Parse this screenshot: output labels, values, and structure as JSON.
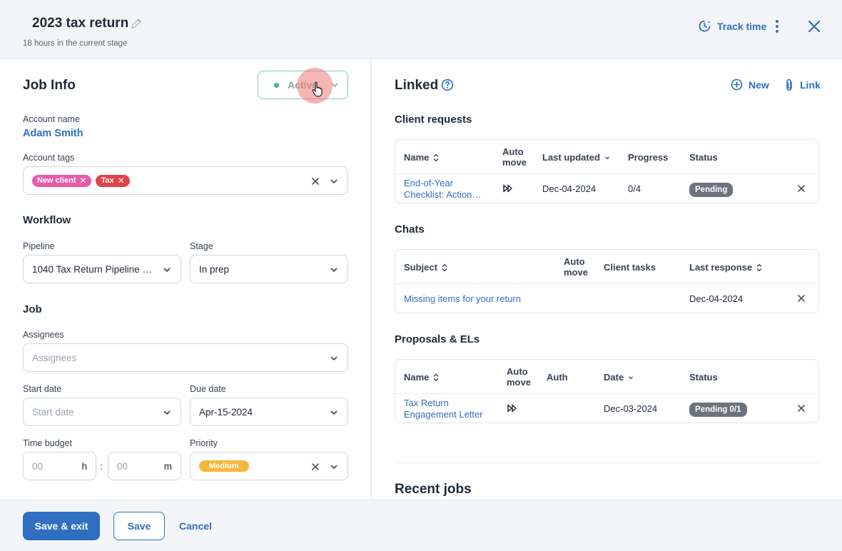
{
  "header": {
    "title": "2023 tax return",
    "subtitle": "18 hours in the current stage",
    "track_time": "Track time"
  },
  "job_info": {
    "title": "Job Info",
    "status": "Active",
    "account_name_label": "Account name",
    "account_name": "Adam Smith",
    "account_tags_label": "Account tags",
    "tags": [
      {
        "label": "New client",
        "color": "#e85aa8"
      },
      {
        "label": "Tax",
        "color": "#e0434b"
      }
    ],
    "workflow_title": "Workflow",
    "pipeline_label": "Pipeline",
    "pipeline_value": "1040 Tax Return Pipeline (fr…",
    "stage_label": "Stage",
    "stage_value": "In prep",
    "job_title": "Job",
    "assignees_label": "Assignees",
    "assignees_placeholder": "Assignees",
    "start_date_label": "Start date",
    "start_date_placeholder": "Start date",
    "due_date_label": "Due date",
    "due_date_value": "Apr-15-2024",
    "time_budget_label": "Time budget",
    "hours_placeholder": "00",
    "hours_unit": "h",
    "time_sep": ":",
    "minutes_placeholder": "00",
    "minutes_unit": "m",
    "priority_label": "Priority",
    "priority_value": "Medium"
  },
  "linked": {
    "title": "Linked",
    "new_label": "New",
    "link_label": "Link",
    "client_requests": {
      "title": "Client requests",
      "columns": [
        "Name",
        "Auto move",
        "Last updated",
        "Progress",
        "Status"
      ],
      "rows": [
        {
          "name_line1": "End-of-Year",
          "name_line2": "Checklist: Action…",
          "last_updated": "Dec-04-2024",
          "progress": "0/4",
          "status": "Pending"
        }
      ]
    },
    "chats": {
      "title": "Chats",
      "columns": [
        "Subject",
        "Auto move",
        "Client tasks",
        "Last response"
      ],
      "rows": [
        {
          "subject": "Missing items for your return",
          "client_tasks": "",
          "last_response": "Dec-04-2024"
        }
      ]
    },
    "proposals": {
      "title": "Proposals & ELs",
      "columns": [
        "Name",
        "Auto move",
        "Auth",
        "Date",
        "Status"
      ],
      "rows": [
        {
          "name_line1": "Tax Return",
          "name_line2": "Engagement Letter",
          "auth": "",
          "date": "Dec-03-2024",
          "status": "Pending 0/1"
        }
      ]
    },
    "recent_jobs_title": "Recent jobs"
  },
  "footer": {
    "save_exit": "Save & exit",
    "save": "Save",
    "cancel": "Cancel"
  },
  "colors": {
    "accent": "#2f6fc2",
    "active_green": "#3fba85",
    "priority": "#f4b73b",
    "badge_gray": "#6b7280"
  }
}
